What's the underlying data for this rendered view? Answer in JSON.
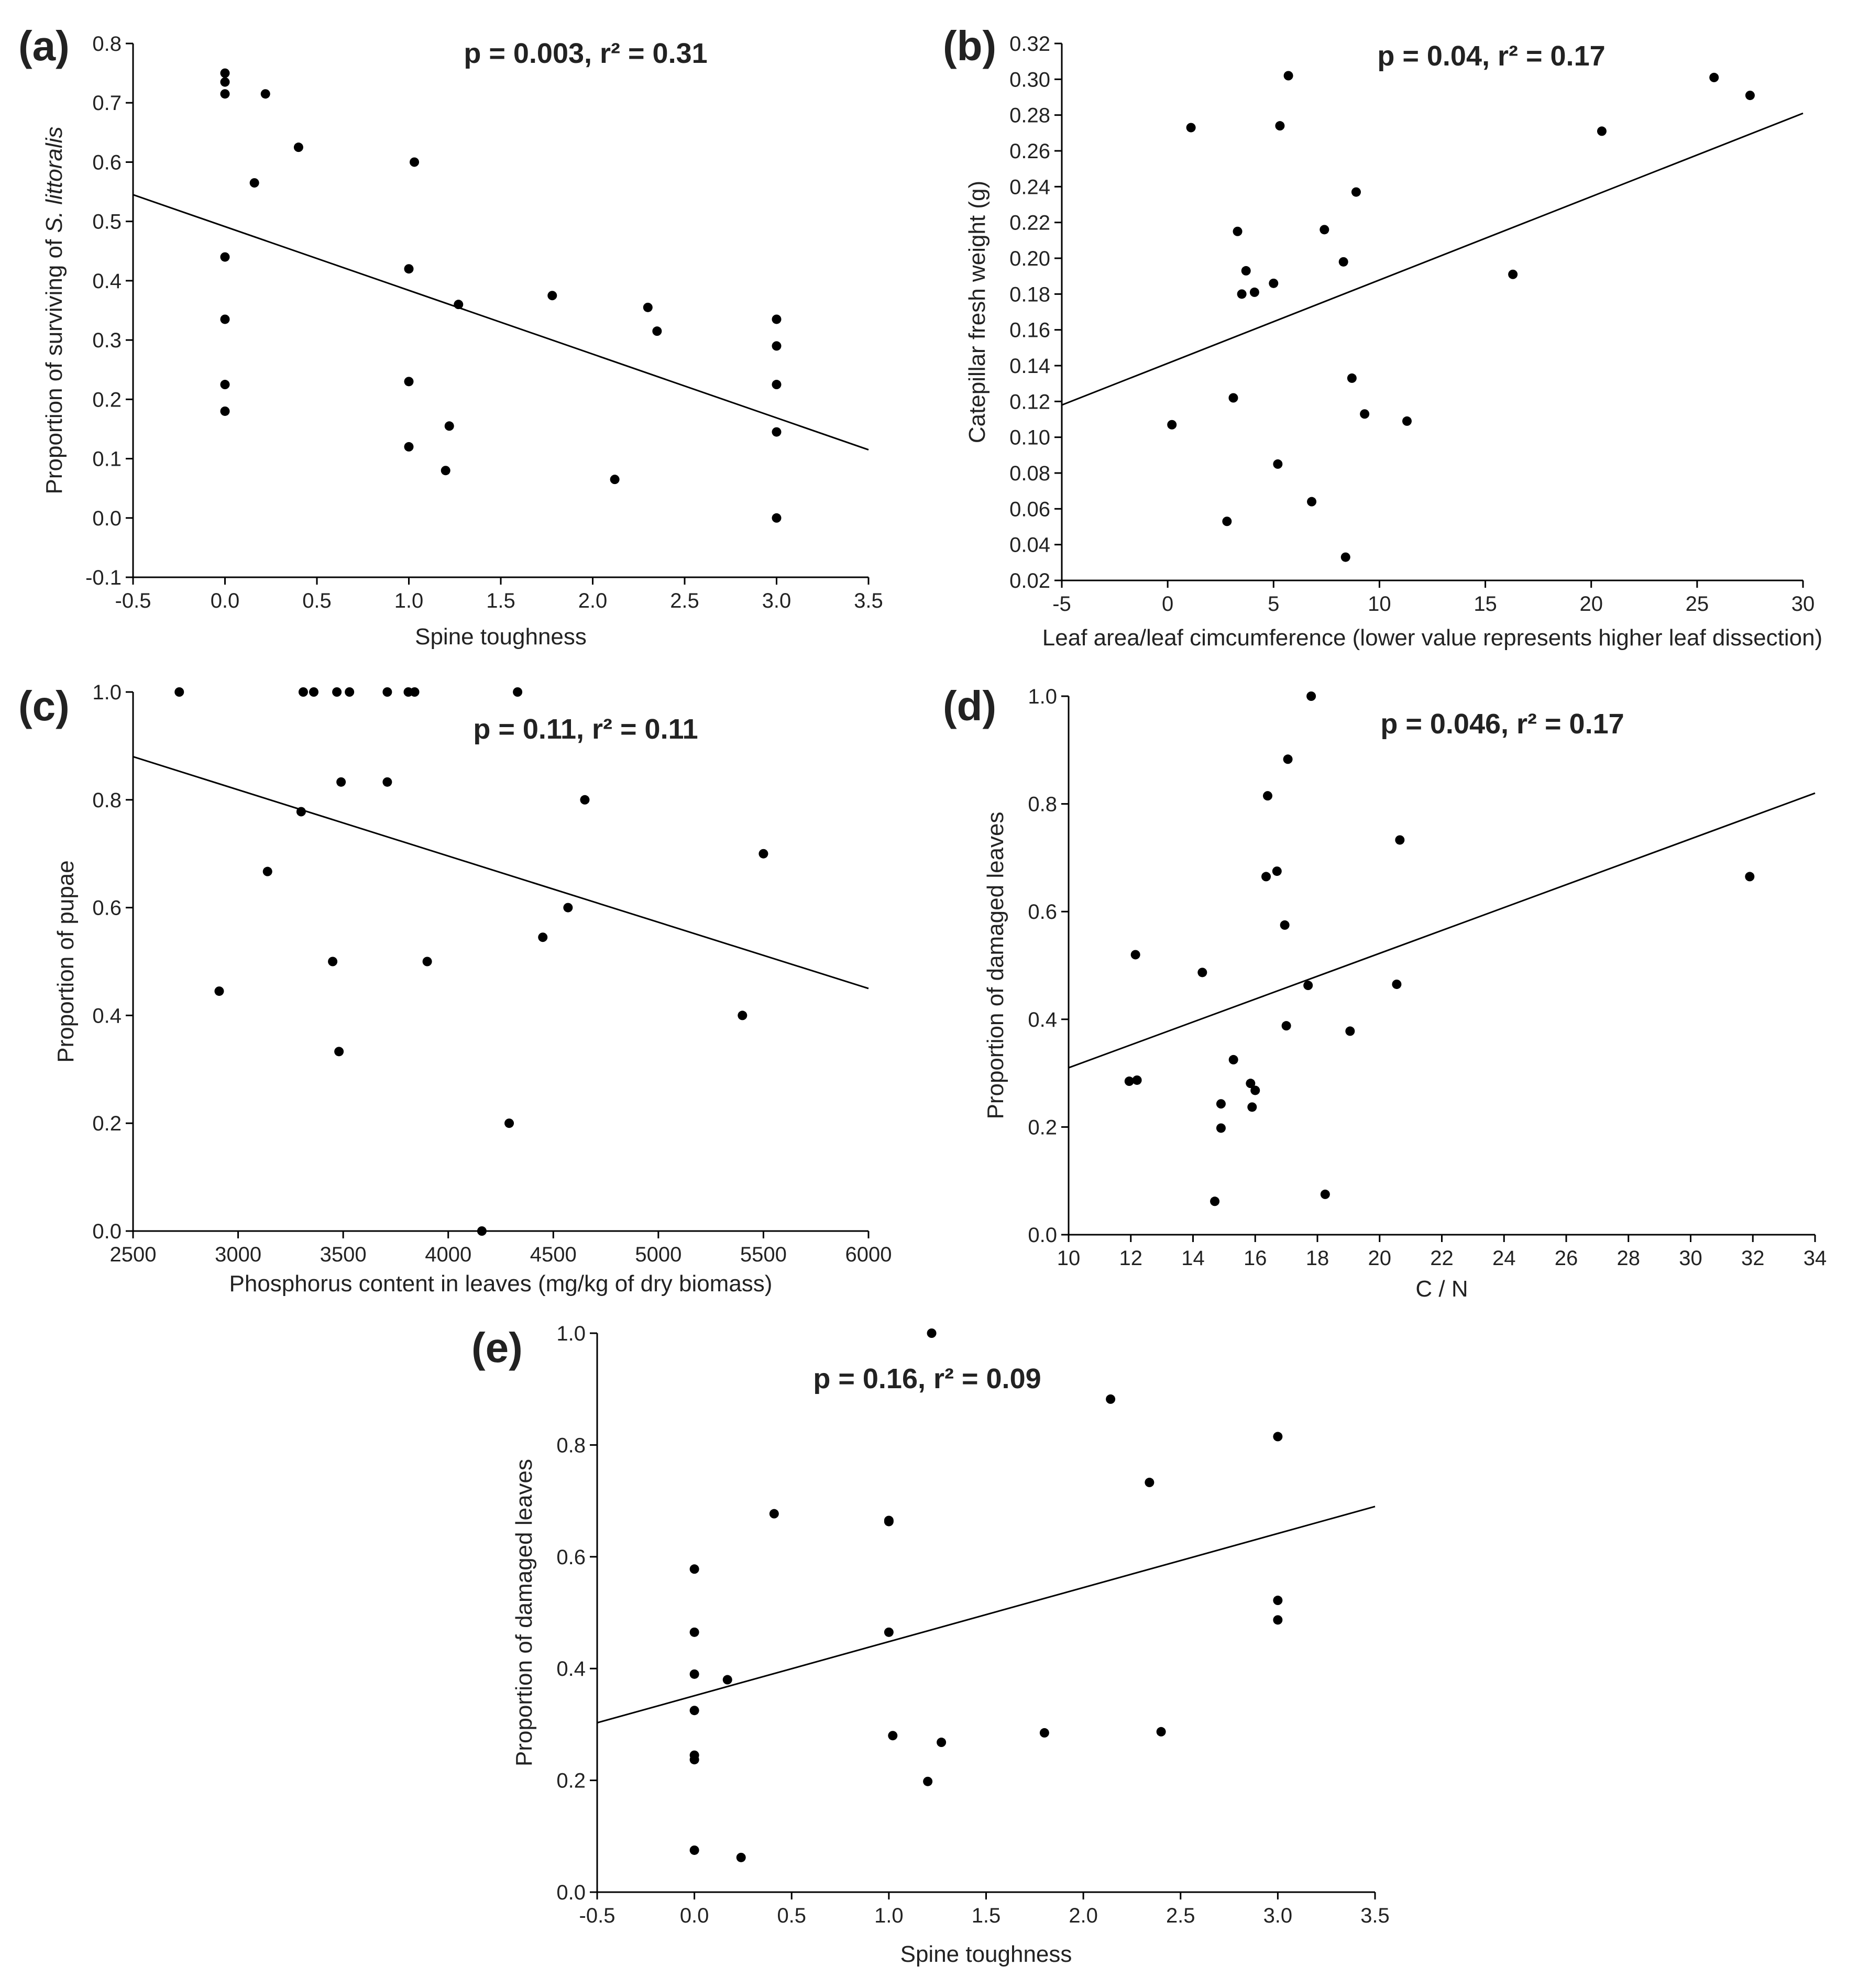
{
  "chart_data": [
    {
      "id": "a",
      "type": "scatter",
      "panel_label": "(a)",
      "stats": "p = 0.003, r² = 0.31",
      "xlabel": "Spine toughness",
      "ylabel_prefix": "Proportion of surviving of ",
      "ylabel_italic": "S. littoralis",
      "xlim": [
        -0.5,
        3.5
      ],
      "ylim": [
        -0.1,
        0.8
      ],
      "xticks": [
        -0.5,
        0.0,
        0.5,
        1.0,
        1.5,
        2.0,
        2.5,
        3.0,
        3.5
      ],
      "yticks": [
        -0.1,
        0.0,
        0.1,
        0.2,
        0.3,
        0.4,
        0.5,
        0.6,
        0.7,
        0.8
      ],
      "xtick_labels": [
        "-0.5",
        "0.0",
        "0.5",
        "1.0",
        "1.5",
        "2.0",
        "2.5",
        "3.0",
        "3.5"
      ],
      "ytick_labels": [
        "-0.1",
        "0.0",
        "0.1",
        "0.2",
        "0.3",
        "0.4",
        "0.5",
        "0.6",
        "0.7",
        "0.8"
      ],
      "points": [
        [
          0.0,
          0.75
        ],
        [
          0.0,
          0.735
        ],
        [
          0.0,
          0.715
        ],
        [
          0.0,
          0.44
        ],
        [
          0.0,
          0.335
        ],
        [
          0.0,
          0.225
        ],
        [
          0.0,
          0.18
        ],
        [
          0.16,
          0.565
        ],
        [
          0.22,
          0.715
        ],
        [
          0.4,
          0.625
        ],
        [
          1.0,
          0.42
        ],
        [
          1.0,
          0.23
        ],
        [
          1.0,
          0.12
        ],
        [
          1.03,
          0.6
        ],
        [
          1.2,
          0.08
        ],
        [
          1.22,
          0.155
        ],
        [
          1.27,
          0.36
        ],
        [
          1.78,
          0.375
        ],
        [
          2.12,
          0.065
        ],
        [
          2.3,
          0.355
        ],
        [
          2.35,
          0.315
        ],
        [
          3.0,
          0.335
        ],
        [
          3.0,
          0.29
        ],
        [
          3.0,
          0.225
        ],
        [
          3.0,
          0.145
        ],
        [
          3.0,
          0.0
        ]
      ],
      "fit": [
        [
          -0.5,
          0.545
        ],
        [
          3.5,
          0.115
        ]
      ]
    },
    {
      "id": "b",
      "type": "scatter",
      "panel_label": "(b)",
      "stats": "p = 0.04, r² = 0.17",
      "xlabel": "Leaf area/leaf cimcumference (lower value represents higher leaf dissection)",
      "ylabel": "Catepillar fresh weight (g)",
      "xlim": [
        -5,
        30
      ],
      "ylim": [
        0.02,
        0.32
      ],
      "xticks": [
        -5,
        0,
        5,
        10,
        15,
        20,
        25,
        30
      ],
      "yticks": [
        0.02,
        0.04,
        0.06,
        0.08,
        0.1,
        0.12,
        0.14,
        0.16,
        0.18,
        0.2,
        0.22,
        0.24,
        0.26,
        0.28,
        0.3,
        0.32
      ],
      "xtick_labels": [
        "-5",
        "0",
        "5",
        "10",
        "15",
        "20",
        "25",
        "30"
      ],
      "ytick_labels": [
        "0.02",
        "0.04",
        "0.06",
        "0.08",
        "0.10",
        "0.12",
        "0.14",
        "0.16",
        "0.18",
        "0.20",
        "0.22",
        "0.24",
        "0.26",
        "0.28",
        "0.30",
        "0.32"
      ],
      "points": [
        [
          0.2,
          0.107
        ],
        [
          1.1,
          0.273
        ],
        [
          2.8,
          0.053
        ],
        [
          3.1,
          0.122
        ],
        [
          3.3,
          0.215
        ],
        [
          3.5,
          0.18
        ],
        [
          3.7,
          0.193
        ],
        [
          4.1,
          0.181
        ],
        [
          5.0,
          0.186
        ],
        [
          5.2,
          0.085
        ],
        [
          5.3,
          0.274
        ],
        [
          5.7,
          0.302
        ],
        [
          6.8,
          0.064
        ],
        [
          7.4,
          0.216
        ],
        [
          8.3,
          0.198
        ],
        [
          8.4,
          0.033
        ],
        [
          8.7,
          0.133
        ],
        [
          8.9,
          0.237
        ],
        [
          9.3,
          0.113
        ],
        [
          11.3,
          0.109
        ],
        [
          16.3,
          0.191
        ],
        [
          20.5,
          0.271
        ],
        [
          25.8,
          0.301
        ],
        [
          27.5,
          0.291
        ]
      ],
      "fit": [
        [
          -5,
          0.118
        ],
        [
          30,
          0.281
        ]
      ]
    },
    {
      "id": "c",
      "type": "scatter",
      "panel_label": "(c)",
      "stats": "p = 0.11, r² = 0.11",
      "xlabel": "Phosphorus content in leaves (mg/kg of dry biomass)",
      "ylabel": "Proportion of pupae",
      "xlim": [
        2500,
        6000
      ],
      "ylim": [
        0.0,
        1.0
      ],
      "xticks": [
        2500,
        3000,
        3500,
        4000,
        4500,
        5000,
        5500,
        6000
      ],
      "yticks": [
        0.0,
        0.2,
        0.4,
        0.6,
        0.8,
        1.0
      ],
      "xtick_labels": [
        "2500",
        "3000",
        "3500",
        "4000",
        "4500",
        "5000",
        "5500",
        "6000"
      ],
      "ytick_labels": [
        "0.0",
        "0.2",
        "0.4",
        "0.6",
        "0.8",
        "1.0"
      ],
      "points": [
        [
          2720,
          1.0
        ],
        [
          2910,
          0.445
        ],
        [
          3140,
          0.667
        ],
        [
          3300,
          0.778
        ],
        [
          3310,
          1.0
        ],
        [
          3360,
          1.0
        ],
        [
          3450,
          0.5
        ],
        [
          3470,
          1.0
        ],
        [
          3480,
          0.333
        ],
        [
          3490,
          0.833
        ],
        [
          3530,
          1.0
        ],
        [
          3710,
          1.0
        ],
        [
          3710,
          0.833
        ],
        [
          3810,
          1.0
        ],
        [
          3840,
          1.0
        ],
        [
          3900,
          0.5
        ],
        [
          4160,
          0.0
        ],
        [
          4290,
          0.2
        ],
        [
          4330,
          1.0
        ],
        [
          4450,
          0.545
        ],
        [
          4570,
          0.6
        ],
        [
          4650,
          0.8
        ],
        [
          5400,
          0.4
        ],
        [
          5500,
          0.7
        ]
      ],
      "fit": [
        [
          2500,
          0.88
        ],
        [
          6000,
          0.45
        ]
      ]
    },
    {
      "id": "d",
      "type": "scatter",
      "panel_label": "(d)",
      "stats": "p = 0.046, r² = 0.17",
      "xlabel": "C / N",
      "ylabel": "Proportion of damaged leaves",
      "xlim": [
        10,
        34
      ],
      "ylim": [
        0.0,
        1.0
      ],
      "xticks": [
        10,
        12,
        14,
        16,
        18,
        20,
        22,
        24,
        26,
        28,
        30,
        32,
        34
      ],
      "yticks": [
        0.0,
        0.2,
        0.4,
        0.6,
        0.8,
        1.0
      ],
      "xtick_labels": [
        "10",
        "12",
        "14",
        "16",
        "18",
        "20",
        "22",
        "24",
        "26",
        "28",
        "30",
        "32",
        "34"
      ],
      "ytick_labels": [
        "0.0",
        "0.2",
        "0.4",
        "0.6",
        "0.8",
        "1.0"
      ],
      "points": [
        [
          11.95,
          0.285
        ],
        [
          12.15,
          0.52
        ],
        [
          12.2,
          0.287
        ],
        [
          14.3,
          0.487
        ],
        [
          14.7,
          0.062
        ],
        [
          14.9,
          0.198
        ],
        [
          14.9,
          0.243
        ],
        [
          15.3,
          0.325
        ],
        [
          15.85,
          0.281
        ],
        [
          15.9,
          0.237
        ],
        [
          16.0,
          0.268
        ],
        [
          16.35,
          0.665
        ],
        [
          16.4,
          0.815
        ],
        [
          16.7,
          0.675
        ],
        [
          16.95,
          0.575
        ],
        [
          17.0,
          0.388
        ],
        [
          17.05,
          0.883
        ],
        [
          17.7,
          0.463
        ],
        [
          17.8,
          1.0
        ],
        [
          18.25,
          0.075
        ],
        [
          19.05,
          0.378
        ],
        [
          20.55,
          0.465
        ],
        [
          20.65,
          0.733
        ],
        [
          31.9,
          0.665
        ]
      ],
      "fit": [
        [
          10,
          0.31
        ],
        [
          34,
          0.82
        ]
      ]
    },
    {
      "id": "e",
      "type": "scatter",
      "panel_label": "(e)",
      "stats": "p = 0.16, r² = 0.09",
      "xlabel": "Spine toughness",
      "ylabel": "Proportion of damaged leaves",
      "xlim": [
        -0.5,
        3.5
      ],
      "ylim": [
        0.0,
        1.0
      ],
      "xticks": [
        -0.5,
        0.0,
        0.5,
        1.0,
        1.5,
        2.0,
        2.5,
        3.0,
        3.5
      ],
      "yticks": [
        0.0,
        0.2,
        0.4,
        0.6,
        0.8,
        1.0
      ],
      "xtick_labels": [
        "-0.5",
        "0.0",
        "0.5",
        "1.0",
        "1.5",
        "2.0",
        "2.5",
        "3.0",
        "3.5"
      ],
      "ytick_labels": [
        "0.0",
        "0.2",
        "0.4",
        "0.6",
        "0.8",
        "1.0"
      ],
      "points": [
        [
          0.0,
          0.578
        ],
        [
          0.0,
          0.465
        ],
        [
          0.0,
          0.39
        ],
        [
          0.0,
          0.325
        ],
        [
          0.0,
          0.245
        ],
        [
          0.0,
          0.237
        ],
        [
          0.0,
          0.075
        ],
        [
          0.17,
          0.38
        ],
        [
          0.24,
          0.062
        ],
        [
          0.41,
          0.677
        ],
        [
          1.0,
          0.665
        ],
        [
          1.0,
          0.663
        ],
        [
          1.0,
          0.465
        ],
        [
          1.02,
          0.28
        ],
        [
          1.2,
          0.198
        ],
        [
          1.22,
          1.0
        ],
        [
          1.27,
          0.268
        ],
        [
          1.8,
          0.285
        ],
        [
          2.14,
          0.882
        ],
        [
          2.34,
          0.733
        ],
        [
          2.4,
          0.287
        ],
        [
          3.0,
          0.815
        ],
        [
          3.0,
          0.522
        ],
        [
          3.0,
          0.487
        ]
      ],
      "fit": [
        [
          -0.5,
          0.303
        ],
        [
          3.5,
          0.69
        ]
      ]
    }
  ]
}
